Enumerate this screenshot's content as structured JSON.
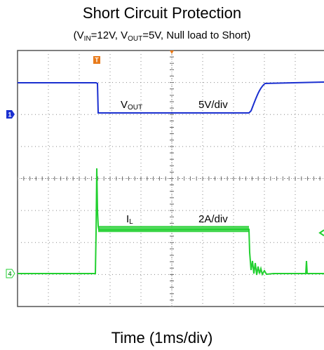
{
  "title": "Short Circuit Protection",
  "subtitle": [
    "(V",
    "IN",
    "=12V, V",
    "OUT",
    "=5V, Null load to Short)"
  ],
  "trace_labels": {
    "vout": [
      "V",
      "OUT"
    ],
    "vout_scale": "5V/div",
    "il": [
      "I",
      "L"
    ],
    "il_scale": "2A/div"
  },
  "markers": {
    "trigger": "T",
    "ch1": "1",
    "ch4": "4"
  },
  "x_label": "Time (1ms/div)"
}
